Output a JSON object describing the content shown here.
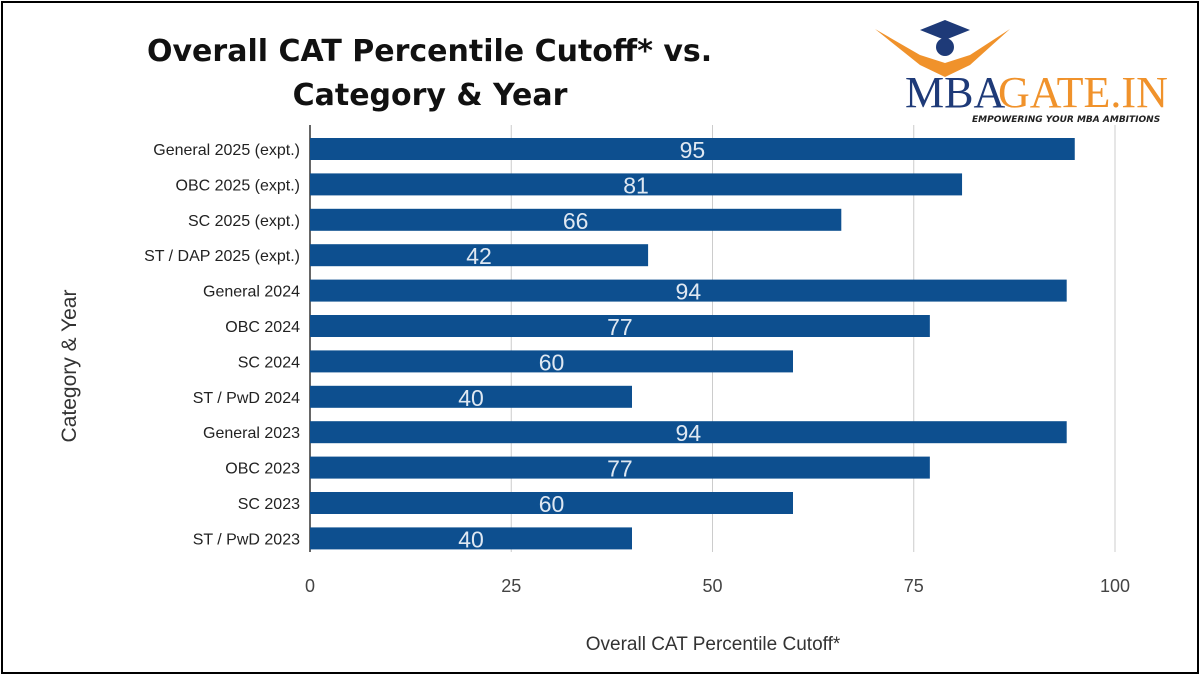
{
  "logo": {
    "brand_left": "MBA",
    "brand_right": "GATE.IN",
    "tagline": "EMPOWERING YOUR MBA AMBITIONS",
    "colors": {
      "navy": "#1e3a78",
      "orange": "#f0922b"
    }
  },
  "chart_data": {
    "type": "bar",
    "orientation": "horizontal",
    "title_line1": "Overall CAT Percentile Cutoff* vs.",
    "title_line2": "Category & Year",
    "xlabel": "Overall CAT Percentile Cutoff*",
    "ylabel": "Category & Year",
    "xlim": [
      0,
      100
    ],
    "xticks": [
      "0",
      "25",
      "50",
      "75",
      "100"
    ],
    "grid": true,
    "bar_color": "#0d4f8f",
    "categories": [
      "General 2025 (expt.)",
      "OBC 2025 (expt.)",
      "SC 2025 (expt.)",
      "ST / DAP 2025 (expt.)",
      "General 2024",
      "OBC 2024",
      "SC 2024",
      "ST / PwD 2024",
      "General 2023",
      "OBC 2023",
      "SC 2023",
      "ST / PwD 2023"
    ],
    "values": [
      95,
      81,
      66,
      42,
      94,
      77,
      60,
      40,
      94,
      77,
      60,
      40
    ]
  }
}
